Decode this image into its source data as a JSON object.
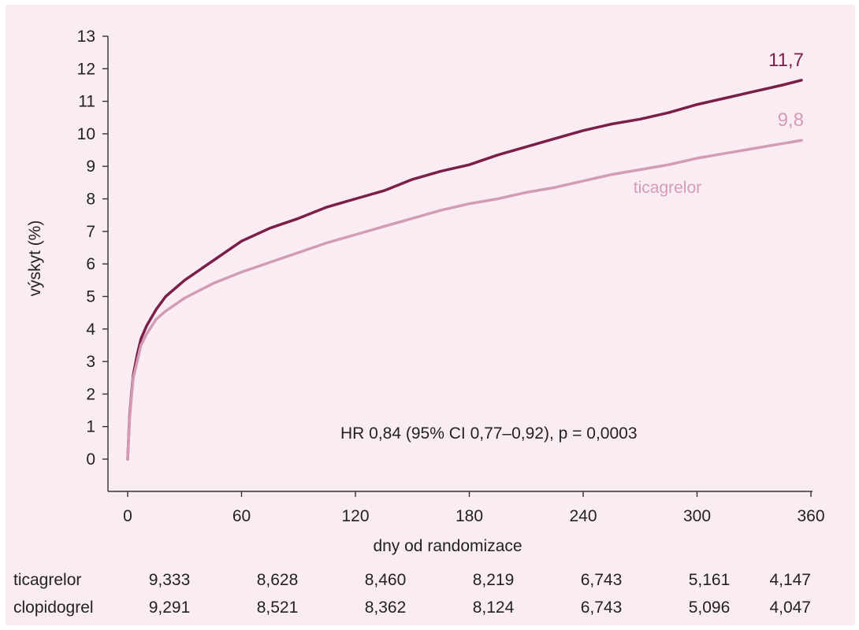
{
  "chart_data": {
    "type": "line",
    "title": "",
    "xlabel": "dny od randomizace",
    "ylabel": "výskyt (%)",
    "xlim": [
      0,
      360
    ],
    "ylim": [
      0,
      13
    ],
    "x_ticks": [
      "0",
      "60",
      "120",
      "180",
      "240",
      "300",
      "360"
    ],
    "y_ticks": [
      "0",
      "1",
      "2",
      "3",
      "4",
      "5",
      "6",
      "7",
      "8",
      "9",
      "10",
      "11",
      "12",
      "13"
    ],
    "grid": false,
    "series": [
      {
        "name": "clopidogrel",
        "color": "#7b1f4a",
        "end_label": "11,7",
        "x": [
          0,
          1,
          2,
          3,
          5,
          7,
          10,
          15,
          20,
          30,
          45,
          60,
          75,
          90,
          105,
          120,
          135,
          150,
          165,
          180,
          195,
          210,
          225,
          240,
          255,
          270,
          285,
          300,
          315,
          330,
          345,
          355
        ],
        "y": [
          0,
          1.3,
          2.0,
          2.6,
          3.2,
          3.7,
          4.1,
          4.6,
          5.0,
          5.5,
          6.1,
          6.7,
          7.1,
          7.4,
          7.75,
          8.0,
          8.25,
          8.6,
          8.85,
          9.05,
          9.35,
          9.6,
          9.85,
          10.1,
          10.3,
          10.45,
          10.65,
          10.9,
          11.1,
          11.3,
          11.5,
          11.65
        ]
      },
      {
        "name": "ticagrelor",
        "color": "#d49bb5",
        "end_label": "9,8",
        "x": [
          0,
          1,
          2,
          3,
          5,
          7,
          10,
          15,
          20,
          30,
          45,
          60,
          75,
          90,
          105,
          120,
          135,
          150,
          165,
          180,
          195,
          210,
          225,
          240,
          255,
          270,
          285,
          300,
          315,
          330,
          345,
          355
        ],
        "y": [
          0,
          1.2,
          1.9,
          2.5,
          3.0,
          3.5,
          3.85,
          4.3,
          4.55,
          4.95,
          5.4,
          5.75,
          6.05,
          6.35,
          6.65,
          6.9,
          7.15,
          7.4,
          7.65,
          7.85,
          8.0,
          8.2,
          8.35,
          8.55,
          8.75,
          8.9,
          9.05,
          9.25,
          9.4,
          9.55,
          9.7,
          9.8
        ]
      }
    ],
    "annotations": [
      {
        "text": "HR 0,84 (95% CI 0,77–0,92), p = 0,0003"
      }
    ],
    "risk_table": {
      "rows": [
        {
          "label": "ticagrelor",
          "values": [
            "9,333",
            "8,628",
            "8,460",
            "8,219",
            "6,743",
            "5,161",
            "4,147"
          ]
        },
        {
          "label": "clopidogrel",
          "values": [
            "9,291",
            "8,521",
            "8,362",
            "8,124",
            "6,743",
            "5,096",
            "4,047"
          ]
        }
      ]
    }
  }
}
